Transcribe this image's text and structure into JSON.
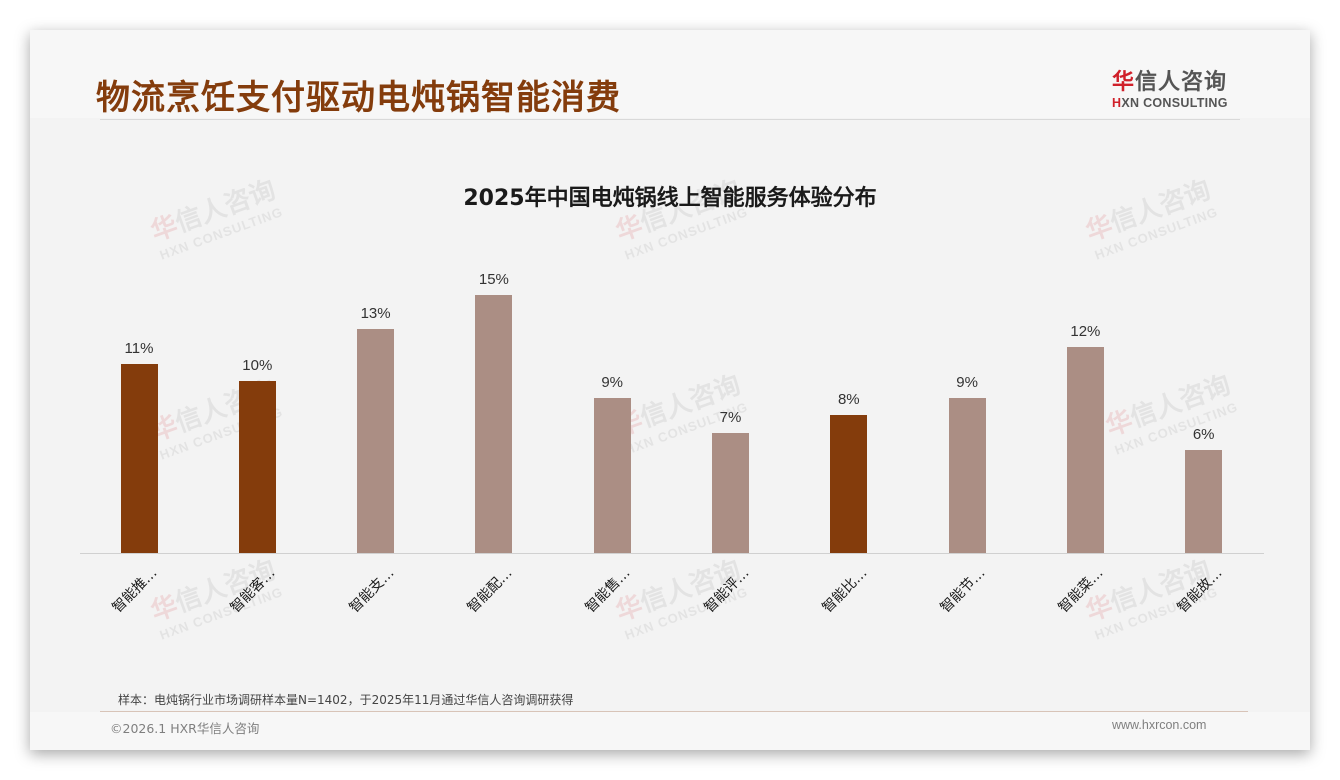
{
  "header": {
    "title": "物流烹饪支付驱动电炖锅智能消费",
    "logo": {
      "cn_first": "华",
      "cn_rest": "信人咨询",
      "en_mark": "H",
      "en_rest": "XN CONSULTING"
    }
  },
  "watermark": {
    "cn_first": "华",
    "cn_rest": "信人咨询",
    "en": "HXN CONSULTING"
  },
  "colors": {
    "title": "#843c0c",
    "bar_highlight": "#843c0c",
    "bar_normal": "#ab8e84",
    "logo_red": "#d0202a"
  },
  "chart_data": {
    "type": "bar",
    "title": "2025年中国电炖锅线上智能服务体验分布",
    "xlabel": "",
    "ylabel": "",
    "ylim": [
      0,
      16
    ],
    "grid": false,
    "legend": null,
    "categories": [
      "智能推…",
      "智能客…",
      "智能支…",
      "智能配…",
      "智能售…",
      "智能评…",
      "智能比…",
      "智能节…",
      "智能菜…",
      "智能故…"
    ],
    "values": [
      11,
      10,
      13,
      15,
      9,
      7,
      8,
      9,
      12,
      6
    ],
    "value_labels": [
      "11%",
      "10%",
      "13%",
      "15%",
      "9%",
      "7%",
      "8%",
      "9%",
      "12%",
      "6%"
    ],
    "highlighted": [
      true,
      true,
      false,
      false,
      false,
      false,
      true,
      false,
      false,
      false
    ],
    "unit": "%"
  },
  "footer": {
    "sample_note": "样本：电炖锅行业市场调研样本量N=1402，于2025年11月通过华信人咨询调研获得",
    "copyright": "©2026.1 HXR华信人咨询",
    "website": "www.hxrcon.com"
  }
}
